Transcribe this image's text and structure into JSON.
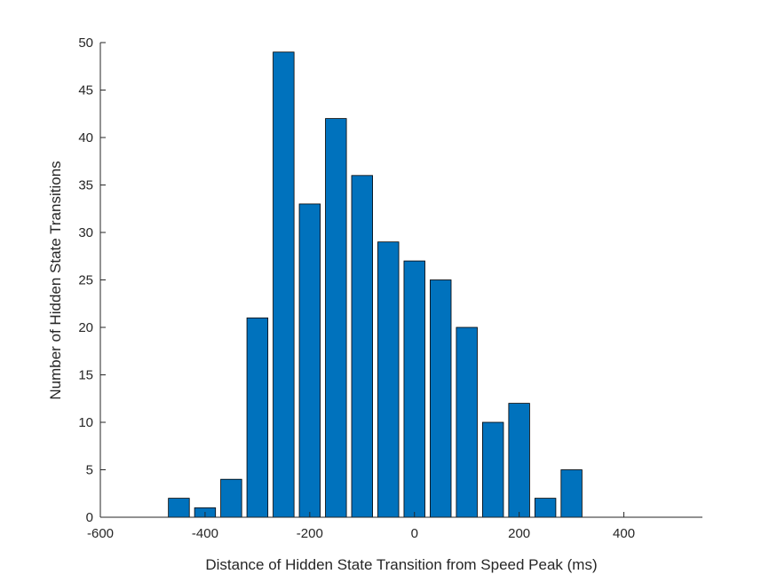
{
  "chart_data": {
    "type": "bar",
    "title": "",
    "xlabel": "Distance of Hidden State Transition from Speed Peak (ms)",
    "ylabel": "Number of Hidden State Transitions",
    "x": [
      -450,
      -400,
      -350,
      -300,
      -250,
      -200,
      -150,
      -100,
      -50,
      0,
      50,
      100,
      150,
      200,
      250,
      300
    ],
    "values": [
      2,
      1,
      4,
      21,
      49,
      33,
      42,
      36,
      29,
      27,
      25,
      20,
      10,
      12,
      2,
      5
    ],
    "bar_width": 40,
    "xlim": [
      -600,
      550
    ],
    "ylim": [
      0,
      50
    ],
    "xticks": [
      -600,
      -400,
      -200,
      0,
      200,
      400
    ],
    "xtick_labels": [
      "-600",
      "-400",
      "-200",
      "0",
      "200",
      "400"
    ],
    "yticks": [
      0,
      5,
      10,
      15,
      20,
      25,
      30,
      35,
      40,
      45,
      50
    ],
    "ytick_labels": [
      "0",
      "5",
      "10",
      "15",
      "20",
      "25",
      "30",
      "35",
      "40",
      "45",
      "50"
    ],
    "grid": false,
    "bar_color": "#0072BD",
    "edge_color": "#000000"
  }
}
